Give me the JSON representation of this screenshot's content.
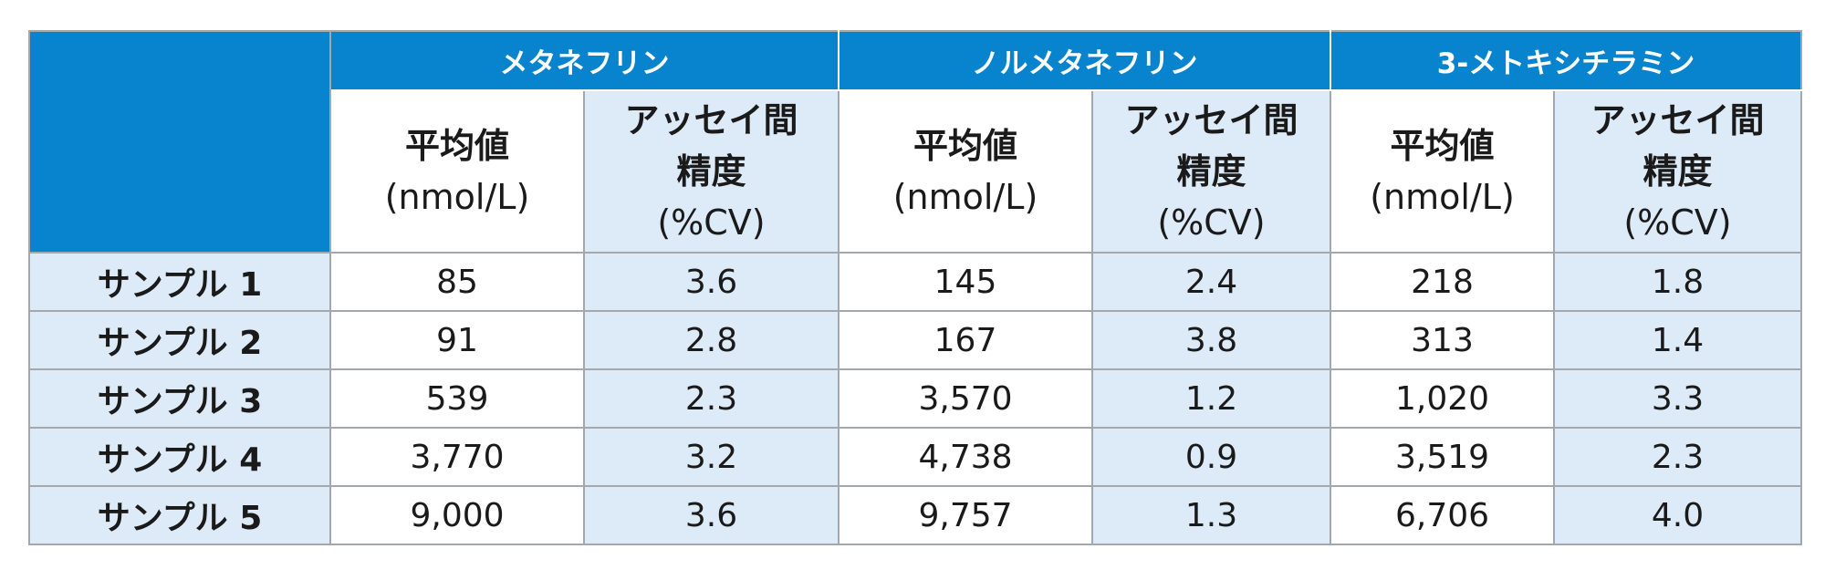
{
  "table": {
    "groups": [
      {
        "title": "メタネフリン"
      },
      {
        "title": "ノルメタネフリン"
      },
      {
        "title": "3-メトキシチラミン"
      }
    ],
    "subheaders": {
      "mean_line1": "平均値",
      "mean_line2": "(nmol/L)",
      "cv_line1": "アッセイ間",
      "cv_line2": "精度",
      "cv_line3": "(%CV)"
    },
    "rows": [
      {
        "label": "サンプル 1",
        "values": [
          "85",
          "3.6",
          "145",
          "2.4",
          "218",
          "1.8"
        ]
      },
      {
        "label": "サンプル 2",
        "values": [
          "91",
          "2.8",
          "167",
          "3.8",
          "313",
          "1.4"
        ]
      },
      {
        "label": "サンプル 3",
        "values": [
          "539",
          "2.3",
          "3,570",
          "1.2",
          "1,020",
          "3.3"
        ]
      },
      {
        "label": "サンプル 4",
        "values": [
          "3,770",
          "3.2",
          "4,738",
          "0.9",
          "3,519",
          "2.3"
        ]
      },
      {
        "label": "サンプル 5",
        "values": [
          "9,000",
          "3.6",
          "9,757",
          "1.3",
          "6,706",
          "4.0"
        ]
      }
    ]
  },
  "colors": {
    "header_blue": "#0884ce",
    "light_blue": "#ddeaf7",
    "border": "#a3a8ae"
  }
}
